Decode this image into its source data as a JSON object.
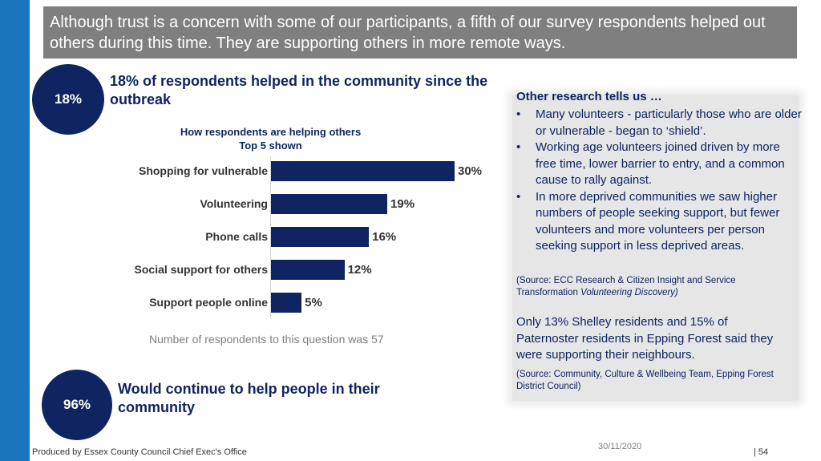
{
  "header": {
    "text": "Although trust is a concern with some of our participants, a fifth of our survey respondents helped out others during this time.  They are supporting others in more remote ways."
  },
  "stat1": {
    "badge": "18%",
    "title": "18% of respondents helped in the community since the outbreak"
  },
  "stat2": {
    "badge": "96%",
    "title": "Would continue to help people in their community"
  },
  "chart_data": {
    "type": "bar",
    "orientation": "horizontal",
    "title_line1": "How respondents are helping others",
    "title_line2": "Top 5 shown",
    "categories": [
      "Shopping for vulnerable",
      "Volunteering",
      "Phone calls",
      "Social support for others",
      "Support people online"
    ],
    "values": [
      30,
      19,
      16,
      12,
      5
    ],
    "value_labels": [
      "30%",
      "19%",
      "16%",
      "12%",
      "5%"
    ],
    "unit": "%",
    "bar_color": "#0f2461",
    "grid": false
  },
  "chart_note": "Number of respondents to this question was 57",
  "panel": {
    "heading": "Other research tells us …",
    "bullets": [
      "Many volunteers - particularly those who are older or vulnerable - began to ‘shield’.",
      "Working age volunteers joined driven by more free time, lower barrier to entry, and a common cause to rally against.",
      "In more deprived communities we saw higher numbers of people seeking support, but fewer volunteers and more volunteers per person seeking support in less deprived areas."
    ],
    "source1_prefix": "(Source: ECC Research & Citizen Insight and Service Transformation ",
    "source1_italic": "Volunteering Discovery)",
    "only_text": "Only 13% Shelley residents and 15% of Paternoster residents in Epping Forest said they were supporting their neighbours.",
    "source2": "(Source: Community, Culture & Wellbeing Team, Epping Forest District Council)"
  },
  "footer": {
    "producer": "Produced by Essex County Council Chief Exec's Office",
    "date": "30/11/2020",
    "page": "|  54"
  },
  "colors": {
    "accent_bar": "#1a75bc",
    "navy": "#0f2461",
    "header_bg": "#7f7f7f"
  }
}
